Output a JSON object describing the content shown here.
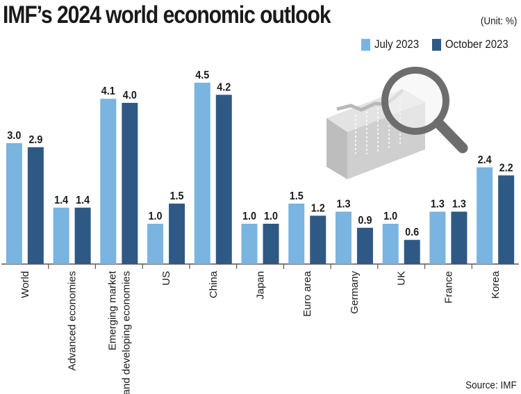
{
  "chart_data": {
    "type": "bar",
    "title": "IMF’s 2024 world economic outlook",
    "unit_label": "(Unit: %)",
    "source": "Source: IMF",
    "xlabel": "",
    "ylabel": "",
    "ylim": [
      0,
      5
    ],
    "grid": false,
    "legend_position": "top-right",
    "categories": [
      [
        "World"
      ],
      [
        "Advanced economies"
      ],
      [
        "Emerging market",
        "and developing economies"
      ],
      [
        "US"
      ],
      [
        "China"
      ],
      [
        "Japan"
      ],
      [
        "Euro area"
      ],
      [
        "Germany"
      ],
      [
        "UK"
      ],
      [
        "France"
      ],
      [
        "Korea"
      ]
    ],
    "series": [
      {
        "name": "July 2023",
        "color": "#7ab4e0",
        "values": [
          3.0,
          1.4,
          4.1,
          1.0,
          4.5,
          1.0,
          1.5,
          1.3,
          1.0,
          1.3,
          2.4
        ],
        "labels": [
          "3.0",
          "1.4",
          "4.1",
          "1.0",
          "4.5",
          "1.0",
          "1.5",
          "1.3",
          "1.0",
          "1.3",
          "2.4"
        ]
      },
      {
        "name": "October 2023",
        "color": "#2f5985",
        "values": [
          2.9,
          1.4,
          4.0,
          1.5,
          4.2,
          1.0,
          1.2,
          0.9,
          0.6,
          1.3,
          2.2
        ],
        "labels": [
          "2.9",
          "1.4",
          "4.0",
          "1.5",
          "4.2",
          "1.0",
          "1.2",
          "0.9",
          "0.6",
          "1.3",
          "2.2"
        ]
      }
    ]
  },
  "colors": {
    "axis": "#555555",
    "background": "#ffffff"
  },
  "illustration_icon": "magnifying-glass-chart-icon"
}
